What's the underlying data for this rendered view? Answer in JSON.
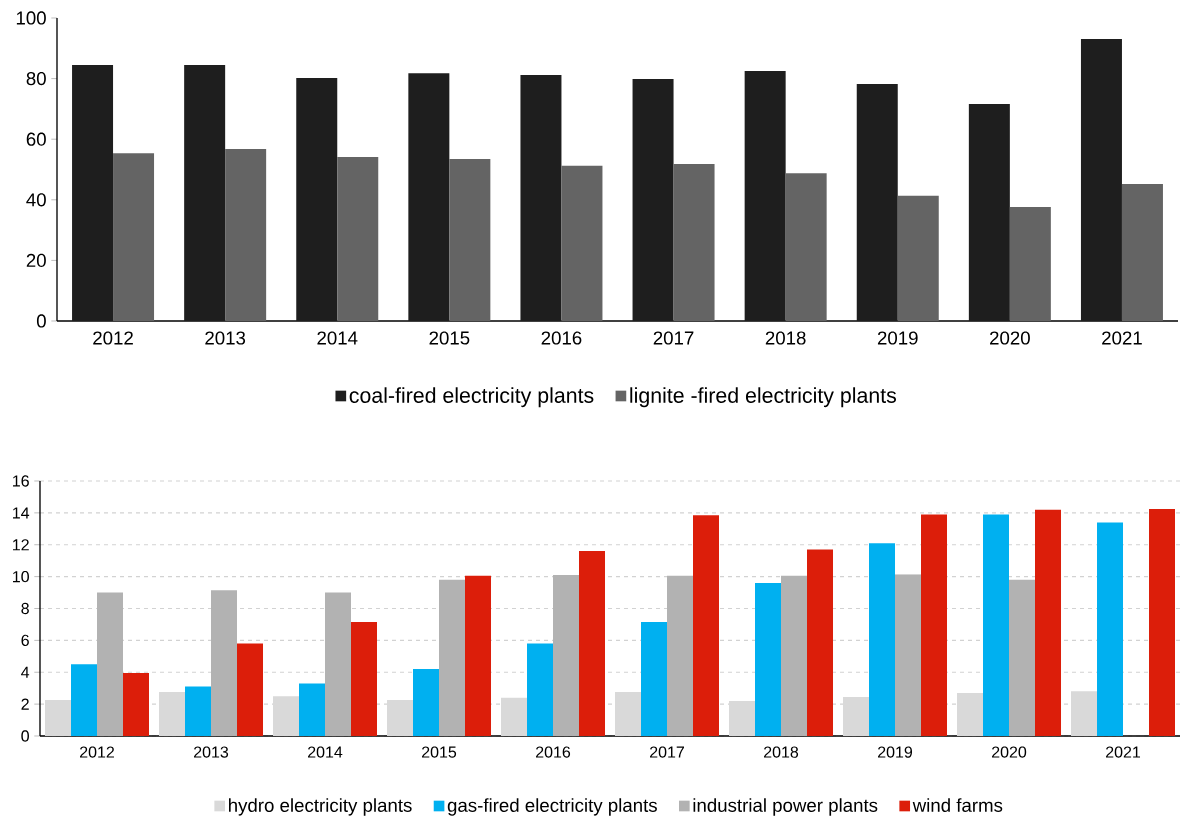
{
  "chart_data": [
    {
      "type": "bar",
      "categories": [
        "2012",
        "2013",
        "2014",
        "2015",
        "2016",
        "2017",
        "2018",
        "2019",
        "2020",
        "2021"
      ],
      "series": [
        {
          "name": "coal-fired electricity plants",
          "color": "#1e1e1e",
          "values": [
            84.5,
            84.5,
            80.2,
            81.8,
            81.2,
            79.9,
            82.5,
            78.2,
            71.6,
            93.1
          ]
        },
        {
          "name": "lignite -fired electricity plants",
          "color": "#646464",
          "values": [
            55.4,
            56.8,
            54.1,
            53.5,
            51.2,
            51.8,
            48.8,
            41.3,
            37.6,
            45.2
          ]
        }
      ],
      "ylim": [
        0,
        100
      ],
      "yticks": [
        0,
        20,
        40,
        60,
        80,
        100
      ],
      "legend": "bottom"
    },
    {
      "type": "bar",
      "categories": [
        "2012",
        "2013",
        "2014",
        "2015",
        "2016",
        "2017",
        "2018",
        "2019",
        "2020",
        "2021"
      ],
      "series": [
        {
          "name": "hydro electricity plants",
          "color": "#d9d9d9",
          "values": [
            2.26,
            2.76,
            2.5,
            2.26,
            2.4,
            2.76,
            2.2,
            2.45,
            2.7,
            2.8
          ]
        },
        {
          "name": "gas-fired electricity plants",
          "color": "#00b0f0",
          "values": [
            4.5,
            3.1,
            3.3,
            4.2,
            5.8,
            7.15,
            9.6,
            12.1,
            13.9,
            13.4
          ]
        },
        {
          "name": "industrial power plants",
          "color": "#b2b2b2",
          "values": [
            9.0,
            9.15,
            9.0,
            9.8,
            10.1,
            10.05,
            10.05,
            10.15,
            9.8,
            null
          ]
        },
        {
          "name": "wind farms",
          "color": "#dc1e0a",
          "values": [
            3.95,
            5.8,
            7.15,
            10.05,
            11.6,
            13.85,
            11.7,
            13.9,
            14.2,
            14.25
          ]
        }
      ],
      "ylim": [
        0,
        16
      ],
      "yticks": [
        0,
        2,
        4,
        6,
        8,
        10,
        12,
        14,
        16
      ],
      "grid": "y",
      "legend": "bottom"
    }
  ]
}
